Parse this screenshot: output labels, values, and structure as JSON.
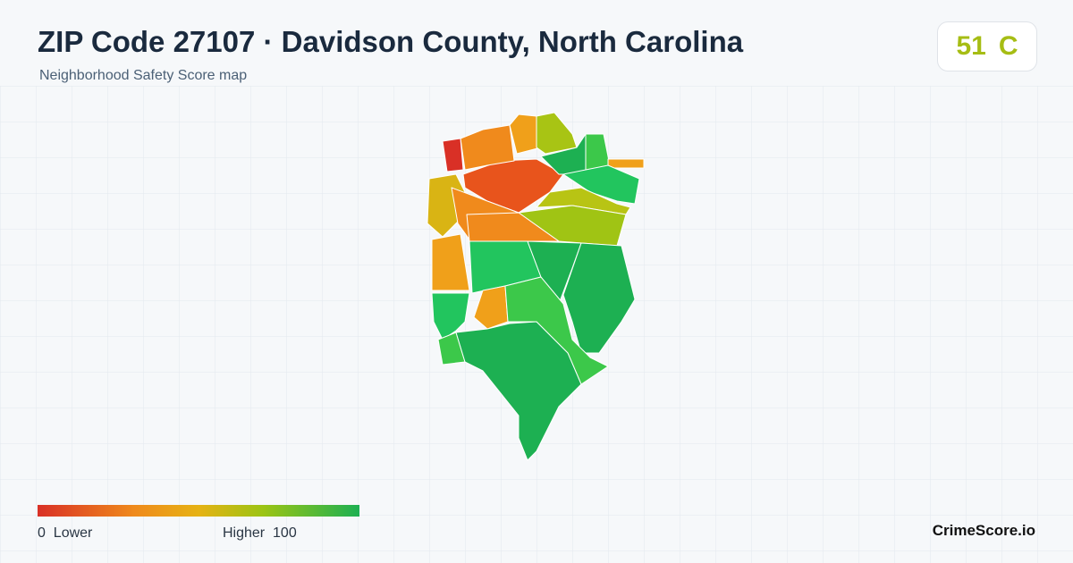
{
  "header": {
    "title": "ZIP Code 27107 · Davidson County, North Carolina",
    "subtitle": "Neighborhood Safety Score map"
  },
  "score": {
    "value": 51,
    "grade": "C"
  },
  "legend": {
    "min": 0,
    "min_label": "Lower",
    "max_label": "Higher",
    "max": 100
  },
  "footer": {
    "brand": "CrimeScore.io"
  }
}
